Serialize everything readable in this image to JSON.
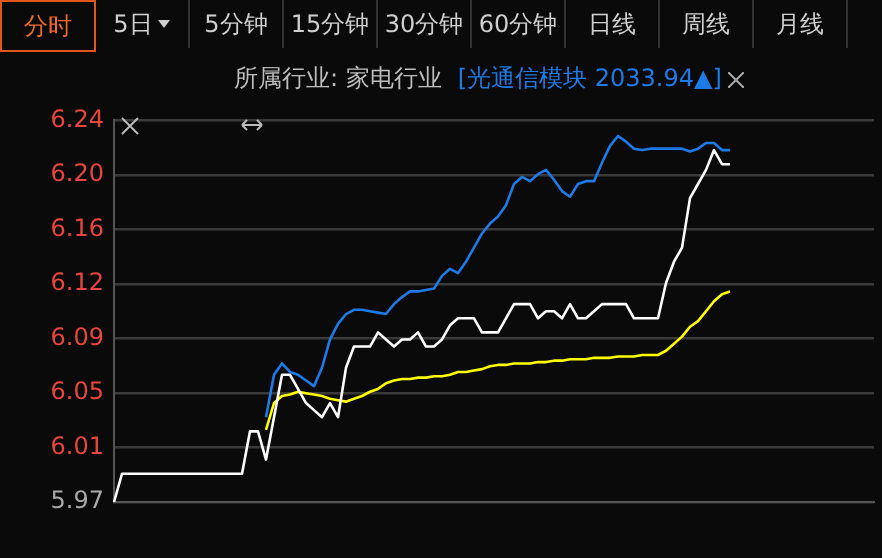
{
  "chart_data": {
    "type": "line",
    "annotations": [
      "分时",
      "5日",
      "5分钟",
      "15分钟",
      "30分钟",
      "60分钟",
      "日线",
      "周线",
      "月线",
      "所属行业: 家电行业",
      "[光通信模块 2033.94▲]"
    ],
    "categories": [
      null,
      null,
      null,
      null,
      null,
      null,
      null,
      null,
      null,
      null,
      null,
      null,
      null,
      null,
      null,
      null,
      null,
      null,
      null,
      null,
      null,
      null,
      null,
      null,
      null,
      null,
      null,
      null,
      null,
      null,
      null,
      null,
      null,
      null,
      null,
      null,
      null,
      null,
      null,
      null,
      null,
      null,
      null,
      null,
      null,
      null,
      null,
      null,
      null,
      null,
      null,
      null,
      null,
      null,
      null,
      null,
      null,
      null,
      null,
      null,
      null,
      null,
      null,
      null,
      null,
      null,
      null,
      null,
      null,
      null,
      null,
      null,
      null,
      null,
      null,
      null,
      null,
      null,
      null,
      null,
      null,
      null,
      null,
      null,
      null,
      null,
      null,
      null,
      null,
      null,
      null,
      null,
      null,
      null,
      null,
      null
    ],
    "series": [
      {
        "color": "#ffffff",
        "values": [
          5.97,
          5.99,
          5.99,
          5.99,
          5.99,
          5.99,
          5.99,
          5.99,
          5.99,
          5.99,
          5.99,
          5.99,
          5.99,
          5.99,
          5.99,
          5.99,
          5.99,
          6.02,
          6.02,
          6.0,
          6.03,
          6.06,
          6.06,
          6.05,
          6.04,
          6.035,
          6.03,
          6.04,
          6.03,
          6.065,
          6.08,
          6.08,
          6.08,
          6.09,
          6.085,
          6.08,
          6.085,
          6.085,
          6.09,
          6.08,
          6.08,
          6.085,
          6.095,
          6.1,
          6.1,
          6.1,
          6.09,
          6.09,
          6.09,
          6.1,
          6.11,
          6.11,
          6.11,
          6.1,
          6.105,
          6.105,
          6.1,
          6.11,
          6.1,
          6.1,
          6.105,
          6.11,
          6.11,
          6.11,
          6.11,
          6.1,
          6.1,
          6.1,
          6.1,
          6.125,
          6.14,
          6.15,
          6.185,
          6.195,
          6.205,
          6.219,
          6.209,
          6.209,
          null,
          null,
          null,
          null,
          null,
          null,
          null,
          null,
          null,
          null,
          null,
          null,
          null,
          null,
          null,
          null,
          null,
          null
        ]
      },
      {
        "color": "#1e7ae6",
        "values": [
          null,
          null,
          null,
          null,
          null,
          null,
          null,
          null,
          null,
          null,
          null,
          null,
          null,
          null,
          null,
          null,
          null,
          null,
          null,
          6.03,
          6.06,
          6.068,
          6.062,
          6.06,
          6.056,
          6.052,
          6.065,
          6.085,
          6.096,
          6.103,
          6.106,
          6.106,
          6.105,
          6.104,
          6.103,
          6.11,
          6.115,
          6.119,
          6.119,
          6.12,
          6.121,
          6.13,
          6.135,
          6.132,
          6.14,
          6.15,
          6.16,
          6.167,
          6.172,
          6.18,
          6.195,
          6.2,
          6.197,
          6.202,
          6.205,
          6.198,
          6.19,
          6.186,
          6.195,
          6.197,
          6.197,
          6.21,
          6.222,
          6.229,
          6.225,
          6.22,
          6.219,
          6.22,
          6.22,
          6.22,
          6.22,
          6.22,
          6.218,
          6.22,
          6.224,
          6.224,
          6.219,
          6.219,
          null,
          null,
          null,
          null,
          null,
          null,
          null,
          null,
          null,
          null,
          null,
          null,
          null,
          null,
          null,
          null,
          null,
          null
        ]
      },
      {
        "color": "#ffff00",
        "values": [
          null,
          null,
          null,
          null,
          null,
          null,
          null,
          null,
          null,
          null,
          null,
          null,
          null,
          null,
          null,
          null,
          null,
          null,
          null,
          6.021,
          6.04,
          6.045,
          6.046,
          6.048,
          6.047,
          6.046,
          6.045,
          6.043,
          6.042,
          6.041,
          6.043,
          6.045,
          6.048,
          6.05,
          6.054,
          6.056,
          6.057,
          6.057,
          6.058,
          6.058,
          6.059,
          6.059,
          6.06,
          6.062,
          6.062,
          6.063,
          6.064,
          6.066,
          6.067,
          6.067,
          6.068,
          6.068,
          6.068,
          6.069,
          6.069,
          6.07,
          6.07,
          6.071,
          6.071,
          6.071,
          6.072,
          6.072,
          6.072,
          6.073,
          6.073,
          6.073,
          6.074,
          6.074,
          6.074,
          6.077,
          6.082,
          6.087,
          6.094,
          6.098,
          6.105,
          6.112,
          6.117,
          6.119,
          null,
          null,
          null,
          null,
          null,
          null,
          null,
          null,
          null,
          null,
          null,
          null,
          null,
          null,
          null,
          null,
          null,
          null
        ]
      }
    ],
    "ylim": [
      5.97,
      6.24
    ],
    "yticks": [
      {
        "value": 5.97,
        "label": "5.97"
      },
      {
        "value": 6.0086,
        "label": "6.01"
      },
      {
        "value": 6.0471,
        "label": "6.05"
      },
      {
        "value": 6.0857,
        "label": "6.09"
      },
      {
        "value": 6.1243,
        "label": "6.12"
      },
      {
        "value": 6.1629,
        "label": "6.16"
      },
      {
        "value": 6.2014,
        "label": "6.20"
      },
      {
        "value": 6.24,
        "label": "6.24"
      }
    ],
    "grid": "y",
    "marker": "none",
    "line_style": "solid",
    "legend": false,
    "tick_labels": "y"
  }
}
